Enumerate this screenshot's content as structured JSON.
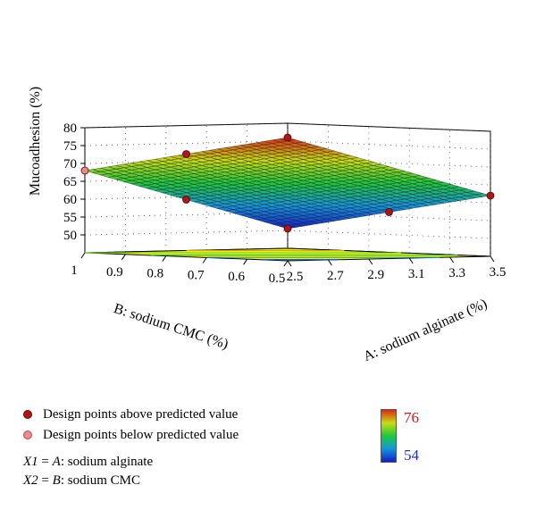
{
  "chart_data": {
    "type": "surface3d",
    "zlabel": "Mucoadhesion (%)",
    "xlabel": "A: sodium alginate (%)",
    "ylabel": "B: sodium CMC (%)",
    "x_ticks": [
      "2.5",
      "2.7",
      "2.9",
      "3.1",
      "3.3",
      "3.5"
    ],
    "y_ticks": [
      "0.5",
      "0.6",
      "0.7",
      "0.8",
      "0.9",
      "1"
    ],
    "z_ticks": [
      "50",
      "55",
      "60",
      "65",
      "70",
      "75",
      "80"
    ],
    "xlim": [
      2.5,
      3.5
    ],
    "ylim": [
      0.5,
      1.0
    ],
    "zlim": [
      45,
      80
    ],
    "surface": {
      "corners": [
        {
          "x": 2.5,
          "y": 0.5,
          "z": 54
        },
        {
          "x": 3.5,
          "y": 0.5,
          "z": 62
        },
        {
          "x": 2.5,
          "y": 1.0,
          "z": 68
        },
        {
          "x": 3.5,
          "y": 1.0,
          "z": 76
        }
      ]
    },
    "design_points": [
      {
        "x": 2.5,
        "y": 0.5,
        "z": 54,
        "type": "above"
      },
      {
        "x": 3.0,
        "y": 0.5,
        "z": 58,
        "type": "above"
      },
      {
        "x": 3.5,
        "y": 0.5,
        "z": 62,
        "type": "above"
      },
      {
        "x": 2.5,
        "y": 0.75,
        "z": 61,
        "type": "above"
      },
      {
        "x": 3.5,
        "y": 1.0,
        "z": 76,
        "type": "above"
      },
      {
        "x": 3.0,
        "y": 1.0,
        "z": 72,
        "type": "above"
      },
      {
        "x": 2.5,
        "y": 1.0,
        "z": 68,
        "type": "below"
      }
    ],
    "colorbar": {
      "min": "54",
      "max": "76"
    }
  },
  "legend": {
    "above": "Design points above predicted value",
    "below": "Design points below predicted value",
    "x1_var": "X1",
    "x1_rest": " = ",
    "x1_factor": "A",
    "x1_name": ": sodium alginate",
    "x2_var": "X2",
    "x2_rest": " = ",
    "x2_factor": "B",
    "x2_name": ": sodium CMC"
  },
  "colors": {
    "floor": "#f7f500",
    "point_above": "#b31414",
    "point_below": "#f08a8a",
    "colorbar_max_text": "#d01818",
    "colorbar_min_text": "#1a2fc8"
  }
}
